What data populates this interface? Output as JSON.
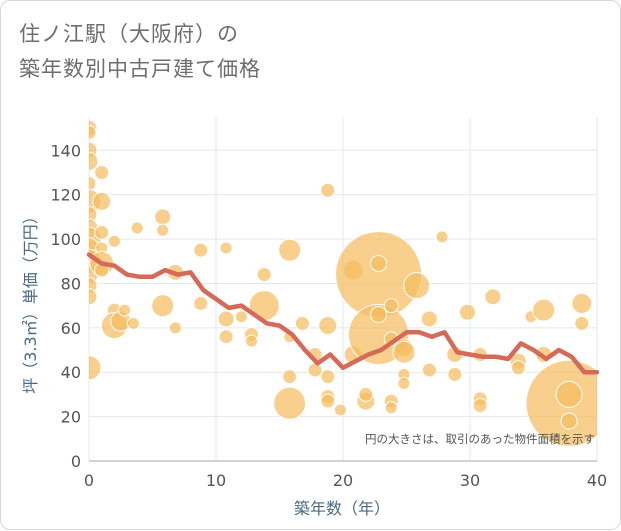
{
  "title": "住ノ江駅（大阪府）の\n築年数別中古戸建て価格",
  "colors": {
    "bubble": "#f5bd5f",
    "bubble_stroke": "#ffffff",
    "line": "#d46a57",
    "grid": "#e3e8ee",
    "axis_text": "#555555",
    "label_text": "#4a6b86"
  },
  "chart_data": {
    "type": "scatter",
    "xlabel": "築年数（年）",
    "ylabel": "坪（3.3㎡）単価（万円）",
    "xlim": [
      0,
      40
    ],
    "ylim": [
      0,
      155
    ],
    "xticks": [
      "0",
      "10",
      "20",
      "30",
      "40"
    ],
    "yticks": [
      "0",
      "20",
      "40",
      "60",
      "80",
      "100",
      "120",
      "140"
    ],
    "note": "円の大きさは、取引のあった物件面積を示す",
    "bubbles": [
      {
        "x": 0,
        "y": 150,
        "s": 8
      },
      {
        "x": 0,
        "y": 148,
        "s": 7
      },
      {
        "x": 0,
        "y": 140,
        "s": 8
      },
      {
        "x": 0,
        "y": 135,
        "s": 9
      },
      {
        "x": 0,
        "y": 125,
        "s": 7
      },
      {
        "x": 0,
        "y": 117,
        "s": 12
      },
      {
        "x": 0,
        "y": 111,
        "s": 8
      },
      {
        "x": 0,
        "y": 105,
        "s": 9
      },
      {
        "x": 0,
        "y": 100,
        "s": 12
      },
      {
        "x": 0,
        "y": 96,
        "s": 10
      },
      {
        "x": 0,
        "y": 90,
        "s": 12
      },
      {
        "x": 0,
        "y": 84,
        "s": 9
      },
      {
        "x": 0,
        "y": 79,
        "s": 8
      },
      {
        "x": 0,
        "y": 74,
        "s": 8
      },
      {
        "x": 0,
        "y": 42,
        "s": 12
      },
      {
        "x": 1,
        "y": 130,
        "s": 7
      },
      {
        "x": 1,
        "y": 117,
        "s": 9
      },
      {
        "x": 1,
        "y": 103,
        "s": 7
      },
      {
        "x": 1,
        "y": 96,
        "s": 6
      },
      {
        "x": 1,
        "y": 89,
        "s": 12
      },
      {
        "x": 1,
        "y": 86,
        "s": 7
      },
      {
        "x": 2,
        "y": 99,
        "s": 6
      },
      {
        "x": 2,
        "y": 68,
        "s": 7
      },
      {
        "x": 2,
        "y": 61,
        "s": 13
      },
      {
        "x": 2.5,
        "y": 63,
        "s": 10
      },
      {
        "x": 2.8,
        "y": 68,
        "s": 6
      },
      {
        "x": 3.5,
        "y": 62,
        "s": 6
      },
      {
        "x": 3.8,
        "y": 105,
        "s": 6
      },
      {
        "x": 5.8,
        "y": 110,
        "s": 8
      },
      {
        "x": 5.8,
        "y": 104,
        "s": 6
      },
      {
        "x": 5.8,
        "y": 70,
        "s": 11
      },
      {
        "x": 6.8,
        "y": 85,
        "s": 8
      },
      {
        "x": 6.8,
        "y": 60,
        "s": 6
      },
      {
        "x": 8.8,
        "y": 95,
        "s": 7
      },
      {
        "x": 8.8,
        "y": 71,
        "s": 7
      },
      {
        "x": 10.8,
        "y": 96,
        "s": 6
      },
      {
        "x": 10.8,
        "y": 64,
        "s": 8
      },
      {
        "x": 10.8,
        "y": 56,
        "s": 7
      },
      {
        "x": 12,
        "y": 65,
        "s": 6
      },
      {
        "x": 12.8,
        "y": 57,
        "s": 7
      },
      {
        "x": 12.8,
        "y": 54,
        "s": 6
      },
      {
        "x": 13.8,
        "y": 84,
        "s": 7
      },
      {
        "x": 13.8,
        "y": 70,
        "s": 15
      },
      {
        "x": 15.8,
        "y": 95,
        "s": 11
      },
      {
        "x": 15.8,
        "y": 26,
        "s": 16
      },
      {
        "x": 15.8,
        "y": 38,
        "s": 7
      },
      {
        "x": 15.8,
        "y": 56,
        "s": 6
      },
      {
        "x": 16.8,
        "y": 62,
        "s": 7
      },
      {
        "x": 17.8,
        "y": 48,
        "s": 7
      },
      {
        "x": 17.8,
        "y": 41,
        "s": 7
      },
      {
        "x": 18.8,
        "y": 122,
        "s": 7
      },
      {
        "x": 18.8,
        "y": 61,
        "s": 9
      },
      {
        "x": 18.8,
        "y": 38,
        "s": 7
      },
      {
        "x": 18.8,
        "y": 29,
        "s": 7
      },
      {
        "x": 18.8,
        "y": 27,
        "s": 7
      },
      {
        "x": 19.8,
        "y": 23,
        "s": 6
      },
      {
        "x": 20.8,
        "y": 86,
        "s": 10
      },
      {
        "x": 20.8,
        "y": 48,
        "s": 9
      },
      {
        "x": 21.8,
        "y": 27,
        "s": 9
      },
      {
        "x": 21.8,
        "y": 30,
        "s": 7
      },
      {
        "x": 22.8,
        "y": 84,
        "s": 43
      },
      {
        "x": 22.8,
        "y": 89,
        "s": 8
      },
      {
        "x": 22.8,
        "y": 57,
        "s": 30
      },
      {
        "x": 22.8,
        "y": 66,
        "s": 8
      },
      {
        "x": 23.8,
        "y": 70,
        "s": 7
      },
      {
        "x": 23.8,
        "y": 55,
        "s": 7
      },
      {
        "x": 23.8,
        "y": 27,
        "s": 7
      },
      {
        "x": 23.8,
        "y": 24,
        "s": 6
      },
      {
        "x": 24.8,
        "y": 51,
        "s": 9
      },
      {
        "x": 24.8,
        "y": 49,
        "s": 11
      },
      {
        "x": 24.8,
        "y": 39,
        "s": 6
      },
      {
        "x": 24.8,
        "y": 35,
        "s": 6
      },
      {
        "x": 25.8,
        "y": 79,
        "s": 13
      },
      {
        "x": 26.8,
        "y": 64,
        "s": 8
      },
      {
        "x": 26.8,
        "y": 41,
        "s": 7
      },
      {
        "x": 27.8,
        "y": 101,
        "s": 6
      },
      {
        "x": 28.8,
        "y": 48,
        "s": 8
      },
      {
        "x": 28.8,
        "y": 39,
        "s": 7
      },
      {
        "x": 29.8,
        "y": 67,
        "s": 8
      },
      {
        "x": 30.8,
        "y": 48,
        "s": 7
      },
      {
        "x": 30.8,
        "y": 28,
        "s": 7
      },
      {
        "x": 30.8,
        "y": 25,
        "s": 7
      },
      {
        "x": 31.8,
        "y": 74,
        "s": 8
      },
      {
        "x": 33.8,
        "y": 45,
        "s": 8
      },
      {
        "x": 33.8,
        "y": 42,
        "s": 7
      },
      {
        "x": 34.8,
        "y": 65,
        "s": 6
      },
      {
        "x": 35.8,
        "y": 68,
        "s": 11
      },
      {
        "x": 35.8,
        "y": 48,
        "s": 8
      },
      {
        "x": 37.8,
        "y": 26,
        "s": 43
      },
      {
        "x": 37.8,
        "y": 30,
        "s": 13
      },
      {
        "x": 37.8,
        "y": 18,
        "s": 8
      },
      {
        "x": 38.8,
        "y": 71,
        "s": 10
      },
      {
        "x": 38.8,
        "y": 62,
        "s": 7
      }
    ],
    "series": [
      {
        "name": "average",
        "x": [
          0,
          1,
          2,
          3,
          4,
          5,
          6,
          7,
          8,
          9,
          10,
          11,
          12,
          13,
          14,
          15,
          16,
          17,
          18,
          19,
          20,
          21,
          22,
          23,
          24,
          25,
          26,
          27,
          28,
          29,
          30,
          31,
          32,
          33,
          34,
          35,
          36,
          37,
          38,
          39,
          40
        ],
        "y": [
          93,
          89,
          88,
          84,
          83,
          83,
          86,
          84,
          85,
          77,
          73,
          69,
          70,
          66,
          62,
          61,
          57,
          50,
          44,
          48,
          42,
          45,
          48,
          50,
          54,
          58,
          58,
          56,
          58,
          49,
          48,
          47,
          47,
          46,
          53,
          50,
          46,
          50,
          47,
          40,
          40
        ]
      }
    ]
  }
}
